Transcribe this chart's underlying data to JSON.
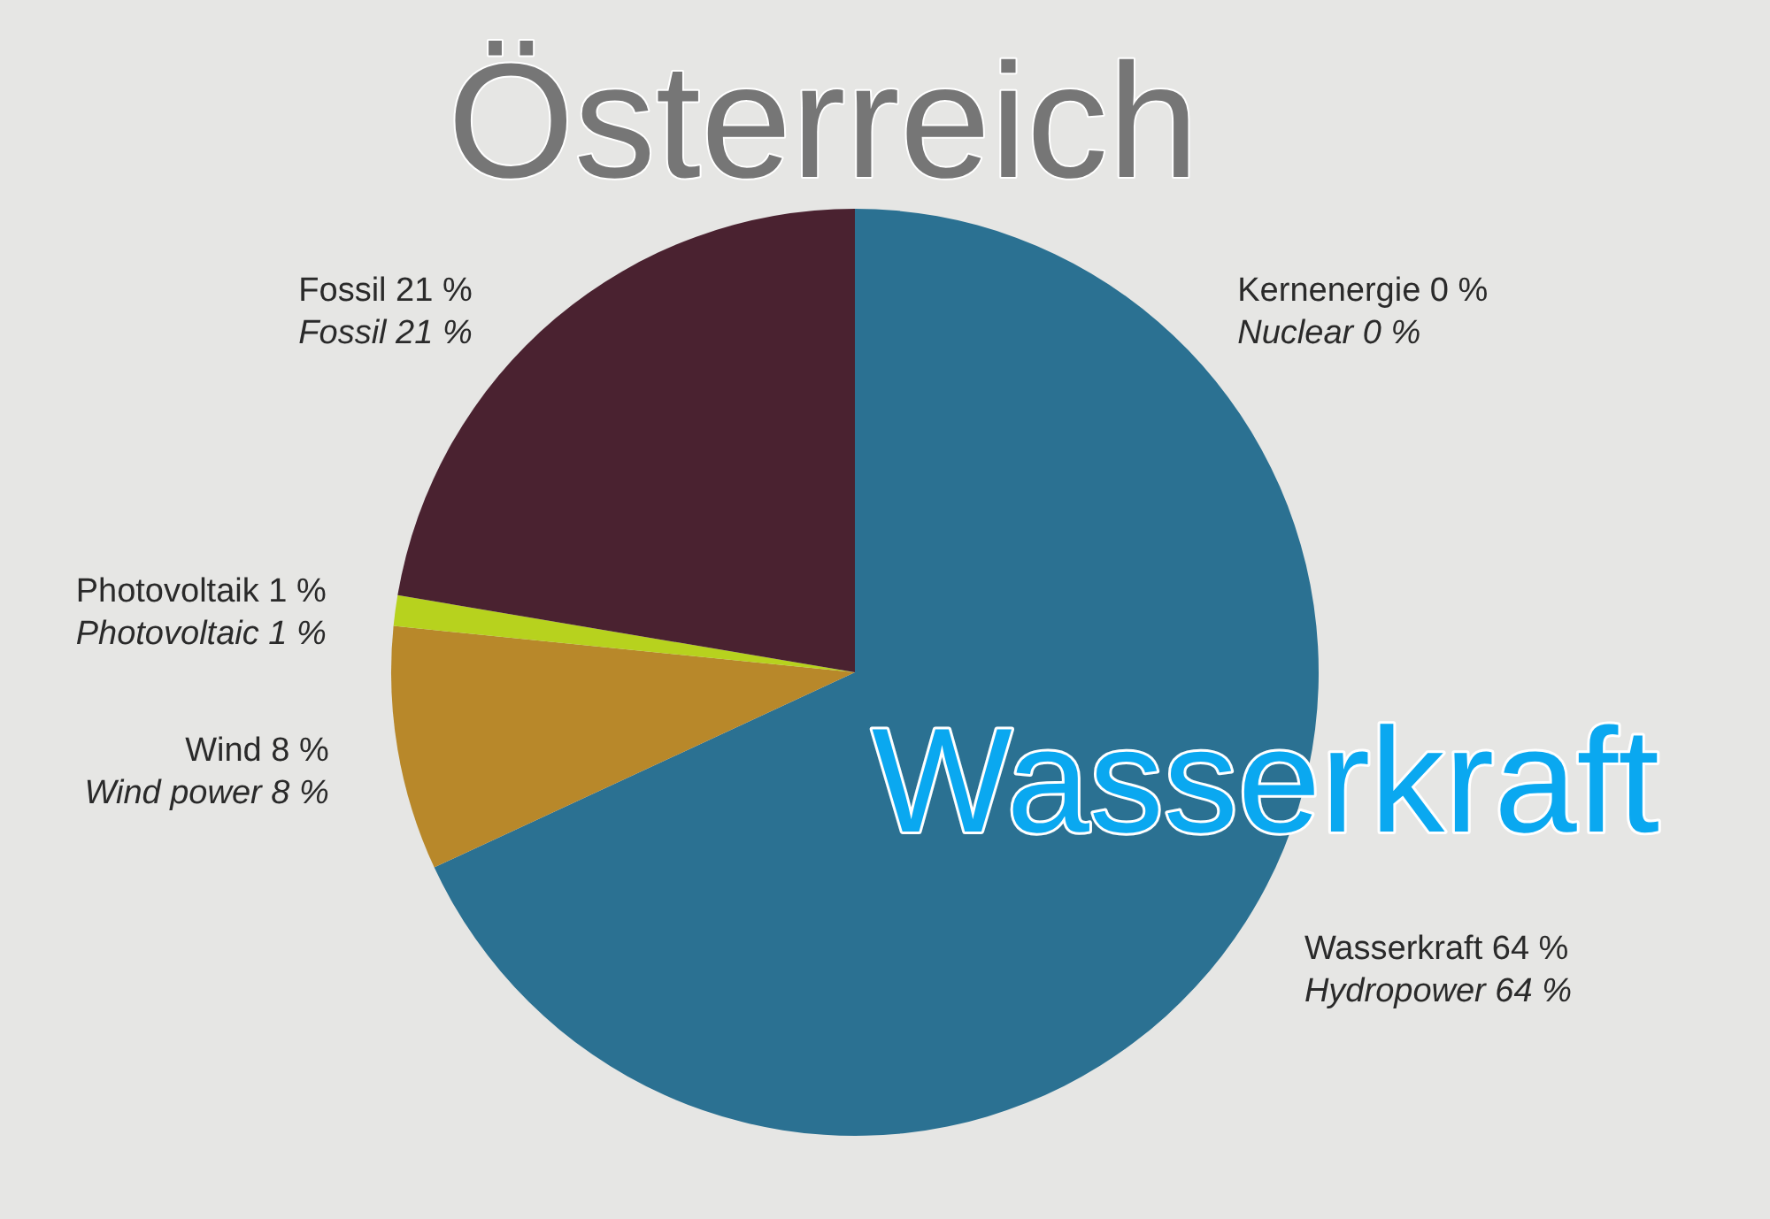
{
  "chart_data": {
    "type": "pie",
    "title": "Österreich",
    "categories": [
      "Kernenergie",
      "Wasserkraft",
      "Wind",
      "Photovoltaik",
      "Fossil"
    ],
    "values": [
      0,
      64,
      8,
      1,
      21
    ],
    "value_labels": [
      "0 %",
      "64 %",
      "8 %",
      "1 %",
      "21 %"
    ],
    "colors": [
      "#8a8a8a",
      "#2b7192",
      "#b8882a",
      "#b7d21e",
      "#4a2230"
    ],
    "annotations": [
      {
        "text": "Nuclear 0 %",
        "x": "Kernenergie"
      },
      {
        "text": "Hydropower 64 %",
        "x": "Wasserkraft"
      },
      {
        "text": "Wind power 8 %",
        "x": "Wind"
      },
      {
        "text": "Photovoltaic 1 %",
        "x": "Photovoltaik"
      },
      {
        "text": "Fossil 21 %",
        "x": "Fossil"
      },
      "Wasserkraft"
    ]
  }
}
